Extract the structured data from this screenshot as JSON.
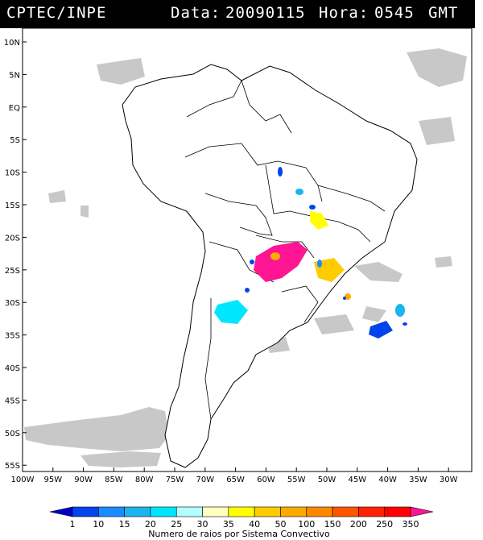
{
  "header": {
    "source": "CPTEC/INPE",
    "date_label": "Data:",
    "date_value": "20090115",
    "hour_label": "Hora:",
    "hour_value": "0545",
    "tz": "GMT"
  },
  "axes": {
    "lat_labels": [
      "10N",
      "5N",
      "EQ",
      "5S",
      "10S",
      "15S",
      "20S",
      "25S",
      "30S",
      "35S",
      "40S",
      "45S",
      "50S",
      "55S"
    ],
    "lon_labels": [
      "100W",
      "95W",
      "90W",
      "85W",
      "80W",
      "75W",
      "70W",
      "65W",
      "60W",
      "55W",
      "50W",
      "45W",
      "40W",
      "35W",
      "30W"
    ]
  },
  "colorbar": {
    "title": "Numero de raios por Sistema Convectivo",
    "ticks": [
      "1",
      "10",
      "15",
      "20",
      "25",
      "30",
      "35",
      "40",
      "50",
      "100",
      "150",
      "200",
      "250",
      "350"
    ],
    "colors": [
      "#0000cc",
      "#0044ee",
      "#1a8cff",
      "#1ab4f0",
      "#00e6ff",
      "#b3ffff",
      "#ffffc0",
      "#ffff00",
      "#ffcc00",
      "#ffaa00",
      "#ff8800",
      "#ff5500",
      "#ff2200",
      "#ff0000",
      "#ff1493"
    ]
  }
}
